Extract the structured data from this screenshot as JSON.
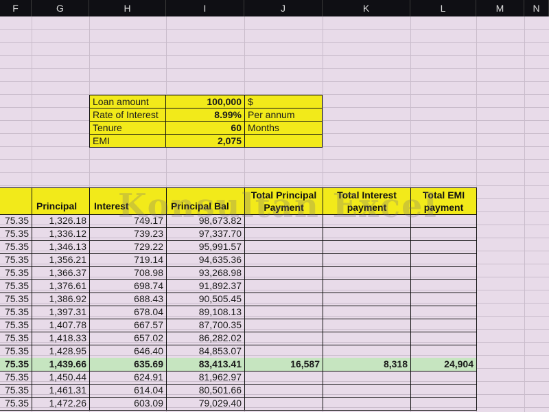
{
  "columns": [
    "F",
    "G",
    "H",
    "I",
    "J",
    "K",
    "L",
    "M",
    "N"
  ],
  "loan_box": {
    "rows": [
      {
        "label": "Loan amount",
        "value": "100,000",
        "unit": "$"
      },
      {
        "label": "Rate of Interest",
        "value": "8.99%",
        "unit": "Per annum"
      },
      {
        "label": "Tenure",
        "value": "60",
        "unit": "Months"
      },
      {
        "label": "EMI",
        "value": "2,075",
        "unit": ""
      }
    ]
  },
  "table": {
    "headers": {
      "principal": "Principal",
      "interest": "Interest",
      "principal_bal": "Principal Bal",
      "total_principal": "Total Principal Payment",
      "total_interest": "Total Interest payment",
      "total_emi": "Total EMI payment"
    },
    "rows": [
      {
        "f": "75.35",
        "g": "1,326.18",
        "h": "749.17",
        "i": "98,673.82",
        "j": "",
        "k": "",
        "l": ""
      },
      {
        "f": "75.35",
        "g": "1,336.12",
        "h": "739.23",
        "i": "97,337.70",
        "j": "",
        "k": "",
        "l": ""
      },
      {
        "f": "75.35",
        "g": "1,346.13",
        "h": "729.22",
        "i": "95,991.57",
        "j": "",
        "k": "",
        "l": ""
      },
      {
        "f": "75.35",
        "g": "1,356.21",
        "h": "719.14",
        "i": "94,635.36",
        "j": "",
        "k": "",
        "l": ""
      },
      {
        "f": "75.35",
        "g": "1,366.37",
        "h": "708.98",
        "i": "93,268.98",
        "j": "",
        "k": "",
        "l": ""
      },
      {
        "f": "75.35",
        "g": "1,376.61",
        "h": "698.74",
        "i": "91,892.37",
        "j": "",
        "k": "",
        "l": ""
      },
      {
        "f": "75.35",
        "g": "1,386.92",
        "h": "688.43",
        "i": "90,505.45",
        "j": "",
        "k": "",
        "l": ""
      },
      {
        "f": "75.35",
        "g": "1,397.31",
        "h": "678.04",
        "i": "89,108.13",
        "j": "",
        "k": "",
        "l": ""
      },
      {
        "f": "75.35",
        "g": "1,407.78",
        "h": "667.57",
        "i": "87,700.35",
        "j": "",
        "k": "",
        "l": ""
      },
      {
        "f": "75.35",
        "g": "1,418.33",
        "h": "657.02",
        "i": "86,282.02",
        "j": "",
        "k": "",
        "l": ""
      },
      {
        "f": "75.35",
        "g": "1,428.95",
        "h": "646.40",
        "i": "84,853.07",
        "j": "",
        "k": "",
        "l": ""
      },
      {
        "f": "75.35",
        "g": "1,439.66",
        "h": "635.69",
        "i": "83,413.41",
        "j": "16,587",
        "k": "8,318",
        "l": "24,904",
        "highlight": true
      },
      {
        "f": "75.35",
        "g": "1,450.44",
        "h": "624.91",
        "i": "81,962.97",
        "j": "",
        "k": "",
        "l": ""
      },
      {
        "f": "75.35",
        "g": "1,461.31",
        "h": "614.04",
        "i": "80,501.66",
        "j": "",
        "k": "",
        "l": ""
      },
      {
        "f": "75.35",
        "g": "1,472.26",
        "h": "603.09",
        "i": "79,029.40",
        "j": "",
        "k": "",
        "l": ""
      }
    ]
  },
  "watermark": "Konsultan Excel"
}
